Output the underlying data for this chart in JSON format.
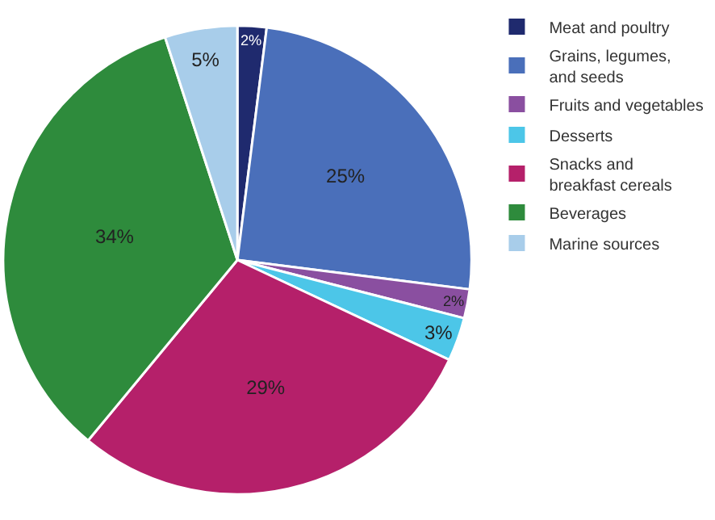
{
  "chart_data": {
    "type": "pie",
    "categories": [
      "Meat and poultry",
      "Grains, legumes,\nand seeds",
      "Fruits and vegetables",
      "Desserts",
      "Snacks and\nbreakfast cereals",
      "Beverages",
      "Marine sources"
    ],
    "values": [
      2,
      25,
      2,
      3,
      29,
      34,
      5
    ],
    "value_labels": [
      "2%",
      "25%",
      "2%",
      "3%",
      "29%",
      "34%",
      "5%"
    ],
    "colors": [
      "#1f2a6e",
      "#4a6fba",
      "#8a4fa0",
      "#4cc6e8",
      "#b5206a",
      "#2e8b3c",
      "#a8cdea"
    ],
    "legend": "right"
  }
}
